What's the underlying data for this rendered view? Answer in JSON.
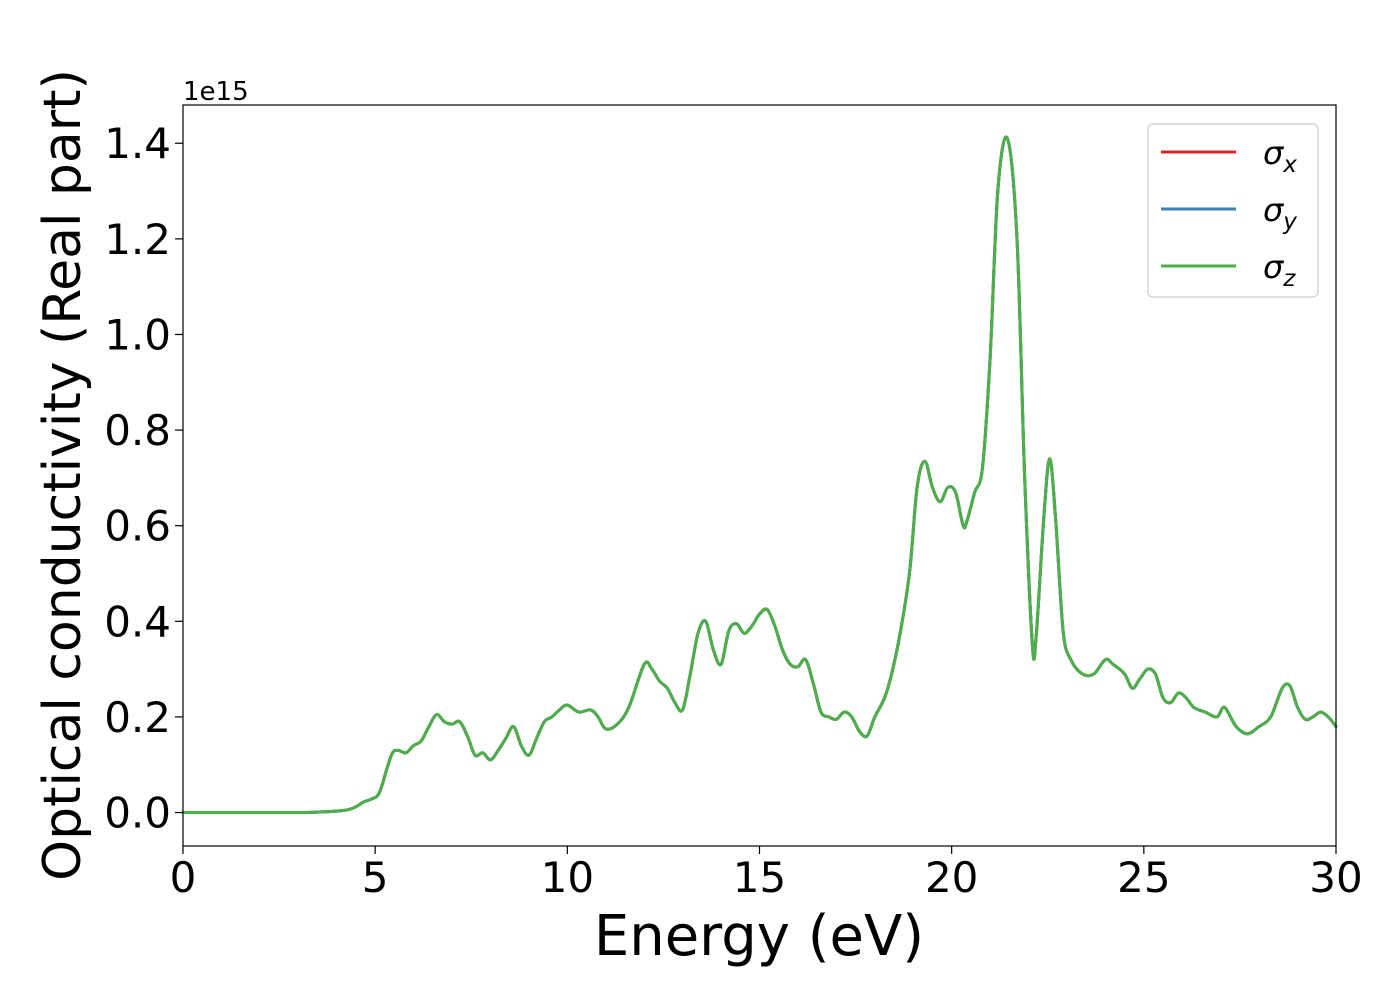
{
  "chart_data": {
    "type": "line",
    "title": "",
    "xlabel": "Energy (eV)",
    "ylabel": "Optical conductivity (Real part)",
    "y_offset_text": "1e15",
    "xlim": [
      0,
      30
    ],
    "ylim": [
      -0.07,
      1.48
    ],
    "x_ticks": [
      0,
      5,
      10,
      15,
      20,
      25,
      30
    ],
    "x_tick_labels": [
      "0",
      "5",
      "10",
      "15",
      "20",
      "25",
      "30"
    ],
    "y_ticks": [
      0.0,
      0.2,
      0.4,
      0.6,
      0.8,
      1.0,
      1.2,
      1.4
    ],
    "y_tick_labels": [
      "0.0",
      "0.2",
      "0.4",
      "0.6",
      "0.8",
      "1.0",
      "1.2",
      "1.4"
    ],
    "grid": false,
    "legend_position": "top-right",
    "x": [
      0,
      1,
      2,
      3,
      3.5,
      4,
      4.3,
      4.5,
      4.7,
      4.9,
      5.1,
      5.3,
      5.45,
      5.6,
      5.8,
      6.0,
      6.2,
      6.4,
      6.6,
      6.8,
      7.0,
      7.2,
      7.4,
      7.6,
      7.8,
      8.0,
      8.2,
      8.4,
      8.6,
      8.8,
      9.0,
      9.2,
      9.4,
      9.6,
      9.8,
      10.0,
      10.3,
      10.6,
      10.8,
      11.0,
      11.3,
      11.6,
      12.0,
      12.2,
      12.4,
      12.6,
      12.8,
      13.0,
      13.2,
      13.4,
      13.6,
      13.8,
      14.0,
      14.2,
      14.4,
      14.6,
      14.8,
      15.0,
      15.2,
      15.4,
      15.6,
      15.8,
      16.0,
      16.2,
      16.4,
      16.6,
      16.8,
      17.0,
      17.2,
      17.4,
      17.6,
      17.8,
      18.0,
      18.3,
      18.6,
      18.9,
      19.1,
      19.3,
      19.5,
      19.7,
      19.9,
      20.1,
      20.3,
      20.4,
      20.6,
      20.8,
      21.0,
      21.2,
      21.45,
      21.7,
      21.9,
      22.1,
      22.2,
      22.4,
      22.55,
      22.7,
      22.9,
      23.1,
      23.4,
      23.7,
      24.0,
      24.2,
      24.5,
      24.7,
      24.9,
      25.1,
      25.3,
      25.5,
      25.7,
      25.9,
      26.1,
      26.3,
      26.6,
      26.9,
      27.1,
      27.4,
      27.7,
      28.0,
      28.3,
      28.6,
      28.8,
      29.0,
      29.2,
      29.4,
      29.6,
      29.8,
      30.0
    ],
    "series": [
      {
        "name": "σx",
        "color": "#d62728",
        "values": [
          0.0,
          0.0,
          0.0,
          0.0,
          0.001,
          0.003,
          0.006,
          0.012,
          0.022,
          0.028,
          0.04,
          0.09,
          0.125,
          0.13,
          0.125,
          0.14,
          0.15,
          0.18,
          0.205,
          0.19,
          0.185,
          0.19,
          0.16,
          0.12,
          0.125,
          0.11,
          0.13,
          0.155,
          0.18,
          0.14,
          0.12,
          0.155,
          0.19,
          0.2,
          0.215,
          0.225,
          0.21,
          0.215,
          0.2,
          0.175,
          0.185,
          0.22,
          0.31,
          0.3,
          0.275,
          0.26,
          0.23,
          0.215,
          0.29,
          0.375,
          0.4,
          0.34,
          0.31,
          0.38,
          0.395,
          0.375,
          0.39,
          0.415,
          0.425,
          0.39,
          0.34,
          0.31,
          0.305,
          0.32,
          0.27,
          0.21,
          0.2,
          0.195,
          0.21,
          0.2,
          0.17,
          0.16,
          0.2,
          0.25,
          0.35,
          0.5,
          0.68,
          0.735,
          0.68,
          0.65,
          0.68,
          0.67,
          0.6,
          0.61,
          0.67,
          0.72,
          0.95,
          1.3,
          1.41,
          1.2,
          0.7,
          0.35,
          0.37,
          0.62,
          0.74,
          0.62,
          0.38,
          0.32,
          0.29,
          0.29,
          0.32,
          0.31,
          0.29,
          0.26,
          0.28,
          0.3,
          0.29,
          0.24,
          0.23,
          0.25,
          0.24,
          0.22,
          0.21,
          0.2,
          0.22,
          0.18,
          0.165,
          0.18,
          0.2,
          0.26,
          0.265,
          0.22,
          0.195,
          0.2,
          0.21,
          0.2,
          0.18
        ]
      },
      {
        "name": "σy",
        "color": "#3a7fb8",
        "values": [
          0.0,
          0.0,
          0.0,
          0.0,
          0.001,
          0.003,
          0.006,
          0.012,
          0.022,
          0.028,
          0.04,
          0.09,
          0.125,
          0.13,
          0.125,
          0.14,
          0.15,
          0.18,
          0.205,
          0.19,
          0.185,
          0.19,
          0.16,
          0.12,
          0.125,
          0.11,
          0.13,
          0.155,
          0.18,
          0.14,
          0.12,
          0.155,
          0.19,
          0.2,
          0.215,
          0.225,
          0.21,
          0.215,
          0.2,
          0.175,
          0.185,
          0.22,
          0.31,
          0.3,
          0.275,
          0.26,
          0.23,
          0.215,
          0.29,
          0.375,
          0.4,
          0.34,
          0.31,
          0.38,
          0.395,
          0.375,
          0.39,
          0.415,
          0.425,
          0.39,
          0.34,
          0.31,
          0.305,
          0.32,
          0.27,
          0.21,
          0.2,
          0.195,
          0.21,
          0.2,
          0.17,
          0.16,
          0.2,
          0.25,
          0.35,
          0.5,
          0.68,
          0.735,
          0.68,
          0.65,
          0.68,
          0.67,
          0.6,
          0.61,
          0.67,
          0.72,
          0.95,
          1.3,
          1.41,
          1.2,
          0.7,
          0.35,
          0.37,
          0.62,
          0.74,
          0.62,
          0.38,
          0.32,
          0.29,
          0.29,
          0.32,
          0.31,
          0.29,
          0.26,
          0.28,
          0.3,
          0.29,
          0.24,
          0.23,
          0.25,
          0.24,
          0.22,
          0.21,
          0.2,
          0.22,
          0.18,
          0.165,
          0.18,
          0.2,
          0.26,
          0.265,
          0.22,
          0.195,
          0.2,
          0.21,
          0.2,
          0.18
        ]
      },
      {
        "name": "σz",
        "color": "#4daf4a",
        "values": [
          0.0,
          0.0,
          0.0,
          0.0,
          0.001,
          0.003,
          0.006,
          0.012,
          0.022,
          0.028,
          0.04,
          0.09,
          0.125,
          0.13,
          0.125,
          0.14,
          0.15,
          0.18,
          0.205,
          0.19,
          0.185,
          0.19,
          0.16,
          0.12,
          0.125,
          0.11,
          0.13,
          0.155,
          0.18,
          0.14,
          0.12,
          0.155,
          0.19,
          0.2,
          0.215,
          0.225,
          0.21,
          0.215,
          0.2,
          0.175,
          0.185,
          0.22,
          0.31,
          0.3,
          0.275,
          0.26,
          0.23,
          0.215,
          0.29,
          0.375,
          0.4,
          0.34,
          0.31,
          0.38,
          0.395,
          0.375,
          0.39,
          0.415,
          0.425,
          0.39,
          0.34,
          0.31,
          0.305,
          0.32,
          0.27,
          0.21,
          0.2,
          0.195,
          0.21,
          0.2,
          0.17,
          0.16,
          0.2,
          0.25,
          0.35,
          0.5,
          0.68,
          0.735,
          0.68,
          0.65,
          0.68,
          0.67,
          0.6,
          0.61,
          0.67,
          0.72,
          0.95,
          1.3,
          1.41,
          1.2,
          0.7,
          0.35,
          0.37,
          0.62,
          0.74,
          0.62,
          0.38,
          0.32,
          0.29,
          0.29,
          0.32,
          0.31,
          0.29,
          0.26,
          0.28,
          0.3,
          0.29,
          0.24,
          0.23,
          0.25,
          0.24,
          0.22,
          0.21,
          0.2,
          0.22,
          0.18,
          0.165,
          0.18,
          0.2,
          0.26,
          0.265,
          0.22,
          0.195,
          0.2,
          0.21,
          0.2,
          0.18
        ]
      }
    ],
    "legend": [
      {
        "symbol": "σ",
        "subscript": "x",
        "color": "#d62728"
      },
      {
        "symbol": "σ",
        "subscript": "y",
        "color": "#3a7fb8"
      },
      {
        "symbol": "σ",
        "subscript": "z",
        "color": "#4daf4a"
      }
    ]
  }
}
